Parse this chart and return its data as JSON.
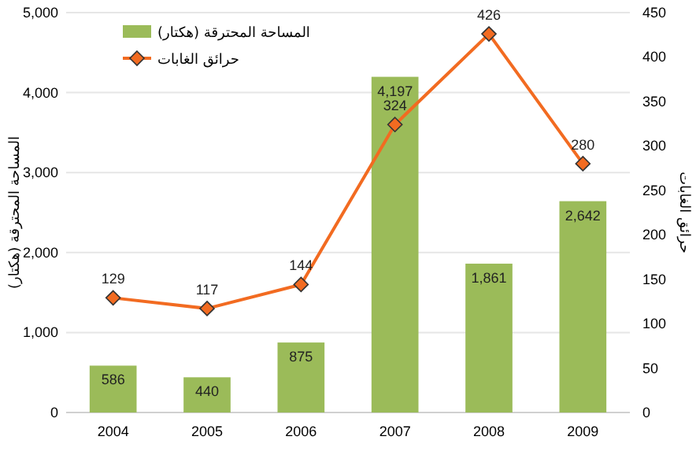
{
  "chart_data": {
    "type": "bar",
    "categories": [
      "2004",
      "2005",
      "2006",
      "2007",
      "2008",
      "2009"
    ],
    "series": [
      {
        "name": "المساحة المحترقة (هكتار)",
        "color": "#9bbb59",
        "values": [
          586,
          440,
          875,
          4197,
          1861,
          2642
        ],
        "value_labels": [
          "586",
          "440",
          "875",
          "4,197",
          "1,861",
          "2,642"
        ]
      },
      {
        "name": "حرائق الغابات",
        "type": "line",
        "axis": "y2",
        "color": "#f26b21",
        "marker": "diamond",
        "values": [
          129,
          117,
          144,
          324,
          426,
          280
        ],
        "value_labels": [
          "129",
          "117",
          "144",
          "324",
          "426",
          "280"
        ]
      }
    ],
    "ylabel": "المساحة المحترقة (هكتار)",
    "y2label": "حرائق الغابات",
    "ylim": [
      0,
      5000
    ],
    "yticks": [
      0,
      {
        "value": 1000,
        "label": "1,000"
      },
      {
        "value": 2000,
        "label": "2,000"
      },
      {
        "value": 3000,
        "label": "3,000"
      },
      {
        "value": 4000,
        "label": "4,000"
      },
      {
        "value": 5000,
        "label": "5,000"
      }
    ],
    "y2lim": [
      0,
      450
    ],
    "y2ticks": [
      0,
      50,
      100,
      150,
      200,
      250,
      300,
      350,
      400,
      450
    ],
    "grid": "y",
    "legend": "top left"
  }
}
